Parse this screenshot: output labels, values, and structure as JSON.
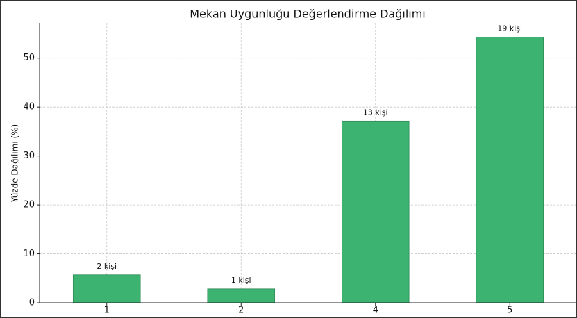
{
  "chart_data": {
    "type": "bar",
    "title": "Mekan Uygunluğu Değerlendirme Dağılımı",
    "ylabel": "Yüzde Dağılımı (%)",
    "categories": [
      "1",
      "2",
      "4",
      "5"
    ],
    "values": [
      5.71,
      2.86,
      37.14,
      54.29
    ],
    "bar_labels": [
      "2 kişi",
      "1 kişi",
      "13 kişi",
      "19 kişi"
    ],
    "color": "#3cb371",
    "ylim": [
      0,
      57.2
    ],
    "yticks": [
      0,
      10,
      20,
      30,
      40,
      50
    ],
    "grid": true
  }
}
